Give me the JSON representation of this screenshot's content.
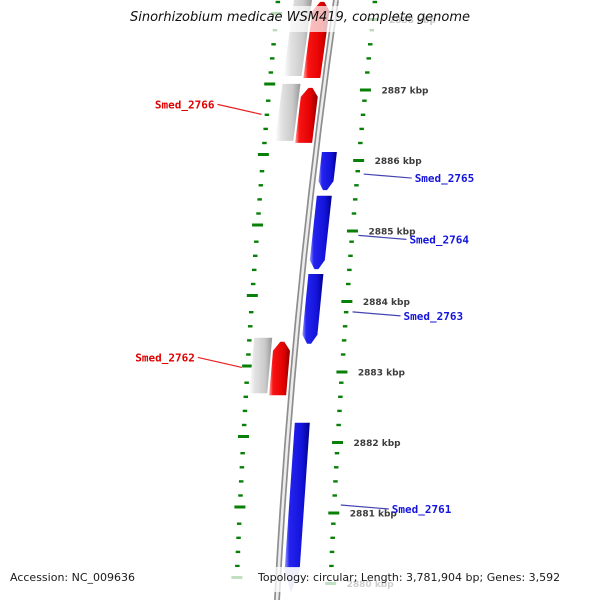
{
  "title": "Sinorhizobium medicae WSM419, complete genome",
  "footer": {
    "accession": "Accession: NC_009636",
    "summary": "Topology: circular; Length: 3,781,904 bp; Genes: 3,592"
  },
  "colors": {
    "forward_gene_red": "#e80000",
    "reverse_gene_blue": "#1414d8",
    "companion_bar_gray": "#c8c8c8",
    "backbone_gray": "#8e8e8e",
    "ruler_green": "#088008",
    "red_label": "#e00000",
    "blue_label": "#1414dd",
    "tick_label_gray": "#3c3c3c",
    "open_arrow_tip": "#b8b8f2"
  },
  "genome_map": {
    "unit": "kbp",
    "orientation": "vertical, position decreases downward",
    "ticks": [
      {
        "kbp": 2888,
        "label": "2888 kbp"
      },
      {
        "kbp": 2887,
        "label": "2887 kbp"
      },
      {
        "kbp": 2886,
        "label": "2886 kbp"
      },
      {
        "kbp": 2885,
        "label": "2885 kbp"
      },
      {
        "kbp": 2884,
        "label": "2884 kbp"
      },
      {
        "kbp": 2883,
        "label": "2883 kbp"
      },
      {
        "kbp": 2882,
        "label": "2882 kbp"
      },
      {
        "kbp": 2881,
        "label": "2881 kbp"
      },
      {
        "kbp": 2880,
        "label": "2880 kbp"
      }
    ],
    "features": [
      {
        "name": "",
        "labeled": false,
        "color": "red",
        "arrow": "up",
        "start_kbp": 2887.17,
        "end_kbp": 2888.25,
        "companion": true
      },
      {
        "name": "Smed_2766",
        "labeled": true,
        "color": "red",
        "arrow": "up",
        "start_kbp": 2886.25,
        "end_kbp": 2887.03,
        "companion": true
      },
      {
        "name": "Smed_2765",
        "labeled": true,
        "color": "blue",
        "arrow": "down",
        "start_kbp": 2885.58,
        "end_kbp": 2886.12
      },
      {
        "name": "Smed_2764",
        "labeled": true,
        "color": "blue",
        "arrow": "down",
        "start_kbp": 2884.46,
        "end_kbp": 2885.5
      },
      {
        "name": "Smed_2763",
        "labeled": true,
        "color": "blue",
        "arrow": "down",
        "start_kbp": 2883.4,
        "end_kbp": 2884.39
      },
      {
        "name": "Smed_2762",
        "labeled": true,
        "color": "red",
        "arrow": "up",
        "start_kbp": 2882.67,
        "end_kbp": 2883.43,
        "companion": true
      },
      {
        "name": "Smed_2761",
        "labeled": true,
        "color": "blue",
        "arrow": "down",
        "start_kbp": 2879.87,
        "end_kbp": 2882.28,
        "open_end": true
      }
    ]
  }
}
